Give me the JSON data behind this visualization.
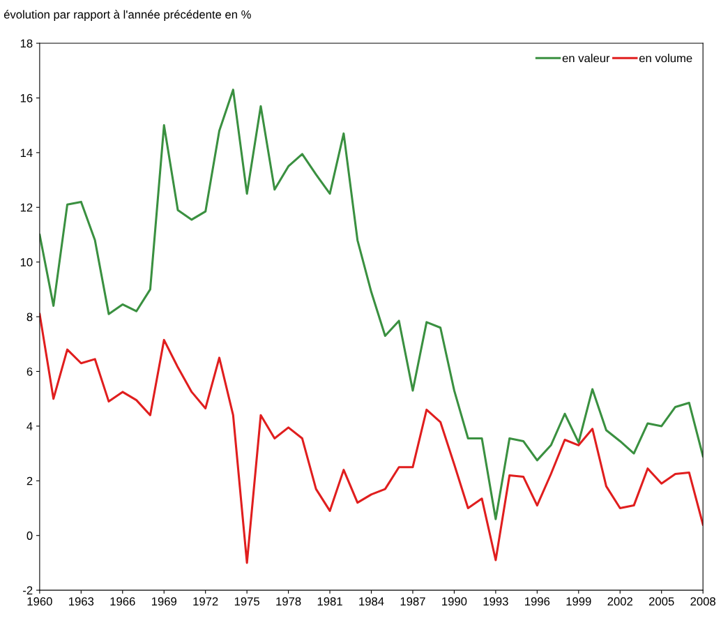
{
  "chart_data": {
    "type": "line",
    "ylabel": "évolution par rapport à l'année précédente en %",
    "x": [
      1960,
      1961,
      1962,
      1963,
      1964,
      1965,
      1966,
      1967,
      1968,
      1969,
      1970,
      1971,
      1972,
      1973,
      1974,
      1975,
      1976,
      1977,
      1978,
      1979,
      1980,
      1981,
      1982,
      1983,
      1984,
      1985,
      1986,
      1987,
      1988,
      1989,
      1990,
      1991,
      1992,
      1993,
      1994,
      1995,
      1996,
      1997,
      1998,
      1999,
      2000,
      2001,
      2002,
      2003,
      2004,
      2005,
      2006,
      2007,
      2008
    ],
    "series": [
      {
        "name": "en valeur",
        "color": "#3a9040",
        "values": [
          11.0,
          8.4,
          12.1,
          12.2,
          10.8,
          8.1,
          8.45,
          8.2,
          9.0,
          15.0,
          11.9,
          11.55,
          11.85,
          14.8,
          16.3,
          12.5,
          15.7,
          12.65,
          13.5,
          13.95,
          13.2,
          12.5,
          14.7,
          10.8,
          8.9,
          7.3,
          7.85,
          5.3,
          7.8,
          7.6,
          5.3,
          3.55,
          3.55,
          0.6,
          3.55,
          3.45,
          2.75,
          3.3,
          4.45,
          3.4,
          5.35,
          3.85,
          3.45,
          3.0,
          4.1,
          4.0,
          4.7,
          4.85,
          2.9
        ]
      },
      {
        "name": "en volume",
        "color": "#e01e1e",
        "values": [
          8.1,
          5.0,
          6.8,
          6.3,
          6.45,
          4.9,
          5.25,
          4.95,
          4.4,
          7.15,
          6.15,
          5.25,
          4.65,
          6.5,
          4.4,
          -1.0,
          4.4,
          3.55,
          3.95,
          3.55,
          1.7,
          0.9,
          2.4,
          1.2,
          1.5,
          1.7,
          2.5,
          2.5,
          4.6,
          4.15,
          2.6,
          1.0,
          1.35,
          -0.9,
          2.2,
          2.15,
          1.1,
          2.25,
          3.5,
          3.3,
          3.9,
          1.8,
          1.0,
          1.1,
          2.45,
          1.9,
          2.25,
          2.3,
          0.4
        ]
      }
    ],
    "xlim": [
      1960,
      2008
    ],
    "xticks": [
      1960,
      1963,
      1966,
      1969,
      1972,
      1975,
      1978,
      1981,
      1984,
      1987,
      1990,
      1993,
      1996,
      1999,
      2002,
      2005,
      2008
    ],
    "ylim": [
      -2,
      18
    ],
    "yticks": [
      -2,
      0,
      2,
      4,
      6,
      8,
      10,
      12,
      14,
      16,
      18
    ],
    "grid": false,
    "legend": "top right",
    "marker": "none",
    "line_style": "solid"
  }
}
